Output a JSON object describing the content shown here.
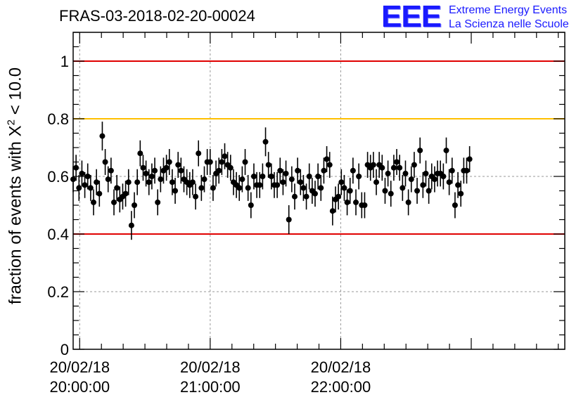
{
  "title": "FRAS-03-2018-02-20-00024",
  "logo": {
    "mark": "EEE",
    "line1": "Extreme Energy Events",
    "line2": "La Scienza nelle Scuole"
  },
  "ylabel": {
    "prefix": "fraction of events with ",
    "symbol": "X",
    "exponent": "2",
    "suffix": " < 10.0"
  },
  "chart_data": {
    "type": "scatter",
    "title": "FRAS-03-2018-02-20-00024",
    "ylabel": "fraction of events with X^2 < 10.0",
    "xlabel": "",
    "x_unit": "minutes after 20/02/18 20:00:00",
    "xlim": [
      -3,
      223
    ],
    "ylim": [
      0,
      1.1
    ],
    "yticks": [
      "0",
      "0.2",
      "0.4",
      "0.6",
      "0.8",
      "1"
    ],
    "ytick_values": [
      0,
      0.2,
      0.4,
      0.6,
      0.8,
      1.0
    ],
    "xticks": [
      {
        "minute": 0,
        "date": "20/02/18",
        "time": "20:00:00"
      },
      {
        "minute": 60,
        "date": "20/02/18",
        "time": "21:00:00"
      },
      {
        "minute": 120,
        "date": "20/02/18",
        "time": "22:00:00"
      }
    ],
    "reference_lines": [
      {
        "y": 1.0,
        "color": "#e00000"
      },
      {
        "y": 0.8,
        "color": "#ffc000"
      },
      {
        "y": 0.4,
        "color": "#e00000"
      }
    ],
    "grid": true,
    "points_x_start": -3.0,
    "points_x_step": 1.34,
    "values": [
      0.59,
      0.63,
      0.56,
      0.61,
      0.57,
      0.6,
      0.56,
      0.51,
      0.58,
      0.54,
      0.74,
      0.65,
      0.59,
      0.62,
      0.51,
      0.56,
      0.52,
      0.53,
      0.54,
      0.58,
      0.43,
      0.5,
      0.58,
      0.68,
      0.63,
      0.61,
      0.58,
      0.6,
      0.62,
      0.51,
      0.59,
      0.62,
      0.63,
      0.65,
      0.58,
      0.55,
      0.64,
      0.62,
      0.59,
      0.58,
      0.57,
      0.58,
      0.53,
      0.68,
      0.56,
      0.59,
      0.65,
      0.65,
      0.56,
      0.61,
      0.62,
      0.65,
      0.67,
      0.64,
      0.63,
      0.58,
      0.57,
      0.56,
      0.59,
      0.65,
      0.56,
      0.5,
      0.6,
      0.57,
      0.57,
      0.6,
      0.72,
      0.64,
      0.6,
      0.57,
      0.57,
      0.62,
      0.58,
      0.61,
      0.45,
      0.59,
      0.53,
      0.62,
      0.58,
      0.56,
      0.53,
      0.6,
      0.55,
      0.54,
      0.6,
      0.56,
      0.62,
      0.66,
      0.64,
      0.48,
      0.52,
      0.53,
      0.58,
      0.56,
      0.51,
      0.55,
      0.62,
      0.51,
      0.6,
      0.5,
      0.5,
      0.64,
      0.63,
      0.64,
      0.58,
      0.64,
      0.63,
      0.55,
      0.61,
      0.54,
      0.63,
      0.65,
      0.63,
      0.56,
      0.61,
      0.51,
      0.59,
      0.64,
      0.55,
      0.69,
      0.57,
      0.61,
      0.55,
      0.6,
      0.59,
      0.61,
      0.61,
      0.6,
      0.69,
      0.58,
      0.62,
      0.5,
      0.57,
      0.54,
      0.62,
      0.62,
      0.66
    ],
    "errors": [
      0.045,
      0.045,
      0.045,
      0.045,
      0.045,
      0.045,
      0.045,
      0.045,
      0.045,
      0.045,
      0.05,
      0.045,
      0.045,
      0.045,
      0.045,
      0.045,
      0.045,
      0.045,
      0.045,
      0.045,
      0.05,
      0.045,
      0.045,
      0.045,
      0.045,
      0.045,
      0.045,
      0.045,
      0.045,
      0.045,
      0.045,
      0.045,
      0.045,
      0.045,
      0.045,
      0.045,
      0.045,
      0.045,
      0.045,
      0.045,
      0.045,
      0.045,
      0.045,
      0.045,
      0.045,
      0.045,
      0.045,
      0.045,
      0.045,
      0.045,
      0.045,
      0.045,
      0.045,
      0.045,
      0.045,
      0.045,
      0.045,
      0.045,
      0.045,
      0.045,
      0.045,
      0.045,
      0.045,
      0.045,
      0.045,
      0.045,
      0.05,
      0.045,
      0.045,
      0.045,
      0.045,
      0.045,
      0.045,
      0.045,
      0.05,
      0.045,
      0.045,
      0.045,
      0.045,
      0.045,
      0.045,
      0.045,
      0.045,
      0.045,
      0.045,
      0.045,
      0.045,
      0.045,
      0.045,
      0.05,
      0.045,
      0.045,
      0.045,
      0.045,
      0.045,
      0.045,
      0.045,
      0.045,
      0.045,
      0.045,
      0.045,
      0.045,
      0.045,
      0.045,
      0.045,
      0.045,
      0.045,
      0.045,
      0.045,
      0.045,
      0.045,
      0.045,
      0.045,
      0.045,
      0.045,
      0.045,
      0.045,
      0.045,
      0.045,
      0.045,
      0.045,
      0.045,
      0.045,
      0.045,
      0.045,
      0.045,
      0.045,
      0.045,
      0.045,
      0.045,
      0.045,
      0.045,
      0.045,
      0.045,
      0.045,
      0.045,
      0.045
    ]
  }
}
